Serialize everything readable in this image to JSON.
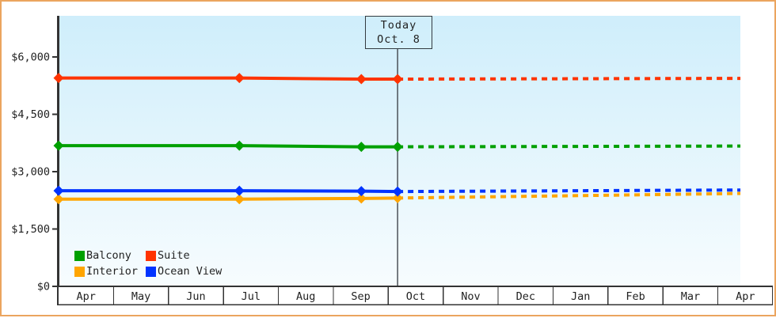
{
  "colors": {
    "frame_border": "#eba55f",
    "plot_bg_top": "#cfeefb",
    "plot_bg_bottom": "#f7fcfe",
    "axis": "#333333",
    "text": "#222222",
    "month_band_bg": "#ffffff",
    "today_line": "#41464c"
  },
  "chart_data": {
    "type": "line",
    "title": "",
    "x_axis": {
      "label": "",
      "months": [
        "Apr",
        "May",
        "Jun",
        "Jul",
        "Aug",
        "Sep",
        "Oct",
        "Nov",
        "Dec",
        "Jan",
        "Feb",
        "Mar",
        "Apr"
      ]
    },
    "y_axis": {
      "label": "",
      "tick_labels": [
        "$0",
        "$1,500",
        "$3,000",
        "$4,500",
        "$6,000"
      ],
      "tick_values": [
        0,
        1500,
        3000,
        4500,
        6000
      ],
      "ylim": [
        0,
        7075
      ]
    },
    "grid": false,
    "legend_position": "bottom-left",
    "today_marker": {
      "line1": "Today",
      "line2": "Oct. 8",
      "t_months": 6.17
    },
    "projection_end_t_months": 12.41,
    "series": [
      {
        "name": "Balcony",
        "color": "#00a000",
        "history_t_months": [
          0,
          3.29,
          5.51,
          6.17
        ],
        "history_values": [
          3680,
          3680,
          3650,
          3650
        ],
        "projected_end_value": 3670,
        "projection_style": "dashed"
      },
      {
        "name": "Suite",
        "color": "#ff3300",
        "history_t_months": [
          0,
          3.29,
          5.51,
          6.17
        ],
        "history_values": [
          5450,
          5450,
          5420,
          5420
        ],
        "projected_end_value": 5440,
        "projection_style": "dashed"
      },
      {
        "name": "Interior",
        "color": "#ffa500",
        "history_t_months": [
          0,
          3.29,
          5.51,
          6.17
        ],
        "history_values": [
          2280,
          2280,
          2300,
          2310
        ],
        "projected_end_value": 2430,
        "projection_style": "dashed"
      },
      {
        "name": "Ocean View",
        "color": "#0033ff",
        "history_t_months": [
          0,
          3.29,
          5.51,
          6.17
        ],
        "history_values": [
          2500,
          2500,
          2490,
          2480
        ],
        "projected_end_value": 2520,
        "projection_style": "dashed"
      }
    ]
  }
}
